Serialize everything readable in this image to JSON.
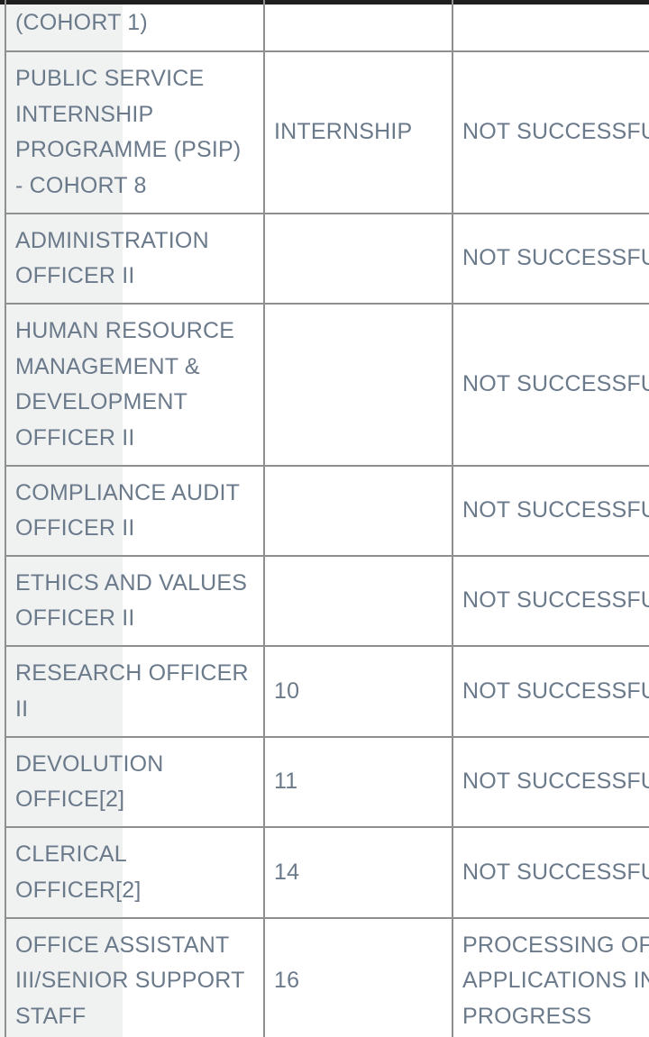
{
  "table": {
    "rows": [
      {
        "position": "(COHORT 1)",
        "ref": "",
        "status": ""
      },
      {
        "position": "PUBLIC SERVICE INTERNSHIP PROGRAMME (PSIP) - COHORT 8",
        "ref": "INTERNSHIP",
        "status": "NOT SUCCESSFU"
      },
      {
        "position": "ADMINISTRATION OFFICER II",
        "ref": "",
        "status": "NOT SUCCESSFU"
      },
      {
        "position": "HUMAN RESOURCE MANAGEMENT & DEVELOPMENT OFFICER II",
        "ref": "",
        "status": "NOT SUCCESSFU"
      },
      {
        "position": "COMPLIANCE AUDIT OFFICER II",
        "ref": "",
        "status": "NOT SUCCESSFU"
      },
      {
        "position": "ETHICS AND VALUES OFFICER II",
        "ref": "",
        "status": "NOT SUCCESSFU"
      },
      {
        "position": "RESEARCH OFFICER II",
        "ref": "10",
        "status": "NOT SUCCESSFU"
      },
      {
        "position": "DEVOLUTION OFFICE[2]",
        "ref": "11",
        "status": "NOT SUCCESSFU"
      },
      {
        "position": "CLERICAL OFFICER[2]",
        "ref": "14",
        "status": "NOT SUCCESSFU"
      },
      {
        "position": "OFFICE ASSISTANT III/SENIOR SUPPORT STAFF",
        "ref": "16",
        "status": "PROCESSING OF APPLICATIONS IN PROGRESS"
      }
    ]
  }
}
